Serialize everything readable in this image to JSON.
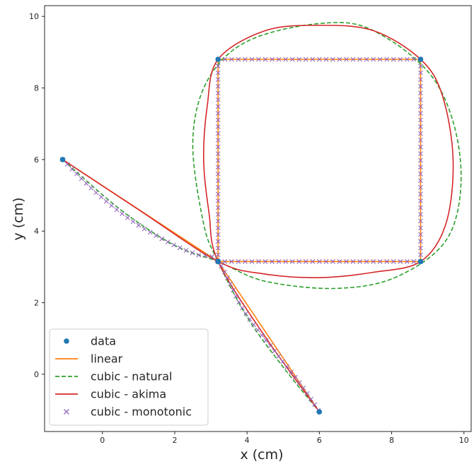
{
  "chart_data": {
    "type": "line",
    "title": "",
    "xlabel": "x (cm)",
    "ylabel": "y (cm)",
    "xlim": [
      -1.6,
      10.2
    ],
    "ylim": [
      -1.6,
      10.3
    ],
    "xticks": [
      0,
      2,
      4,
      6,
      8,
      10
    ],
    "yticks": [
      0,
      2,
      4,
      6,
      8,
      10
    ],
    "grid": false,
    "legend_position": "lower-left",
    "series": [
      {
        "name": "data",
        "kind": "points",
        "color": "#1f77b4",
        "x": [
          -1.1,
          3.2,
          8.8,
          8.8,
          3.2,
          3.2,
          6.0
        ],
        "y": [
          6.0,
          3.15,
          3.15,
          8.8,
          8.8,
          3.15,
          -1.05
        ]
      },
      {
        "name": "linear",
        "kind": "line",
        "color": "#ff7f0e",
        "x": [
          -1.1,
          3.2,
          8.8,
          8.8,
          3.2,
          3.2,
          6.0
        ],
        "y": [
          6.0,
          3.15,
          3.15,
          8.8,
          8.8,
          3.15,
          -1.05
        ]
      },
      {
        "name": "cubic - natural",
        "kind": "dashed",
        "color": "#2ca02c",
        "x": [
          -1.1,
          0.5,
          2.0,
          3.2,
          4.5,
          6.5,
          8.2,
          9.6,
          9.9,
          9.2,
          7.5,
          6.0,
          4.0,
          2.9,
          2.5,
          2.8,
          3.2,
          4.0,
          5.0,
          6.0
        ],
        "y": [
          6.0,
          4.6,
          3.6,
          3.15,
          2.6,
          2.4,
          2.75,
          3.9,
          6.0,
          8.2,
          9.6,
          9.8,
          9.3,
          8.2,
          6.5,
          4.2,
          3.15,
          1.6,
          0.2,
          -1.05
        ]
      },
      {
        "name": "cubic - akima",
        "kind": "line",
        "color": "#d62728",
        "x": [
          -1.1,
          1.0,
          3.2,
          4.5,
          6.0,
          7.5,
          8.8,
          9.5,
          9.7,
          9.4,
          8.8,
          7.5,
          6.0,
          4.5,
          3.2,
          2.9,
          2.8,
          2.95,
          3.2,
          4.5,
          6.0
        ],
        "y": [
          6.0,
          4.6,
          3.15,
          2.8,
          2.7,
          2.85,
          3.15,
          4.2,
          6.0,
          7.8,
          8.8,
          9.6,
          9.75,
          9.6,
          8.8,
          7.5,
          6.0,
          4.5,
          3.15,
          1.05,
          -1.05
        ]
      },
      {
        "name": "cubic - monotonic",
        "kind": "markers-x",
        "color": "#9467bd",
        "x": [
          -1.1,
          -0.2,
          0.8,
          1.8,
          2.6,
          3.2,
          3.9,
          4.8,
          5.5,
          6.0
        ],
        "y": [
          6.0,
          5.1,
          4.3,
          3.7,
          3.35,
          3.15,
          1.8,
          0.6,
          -0.3,
          -1.05
        ]
      }
    ]
  }
}
